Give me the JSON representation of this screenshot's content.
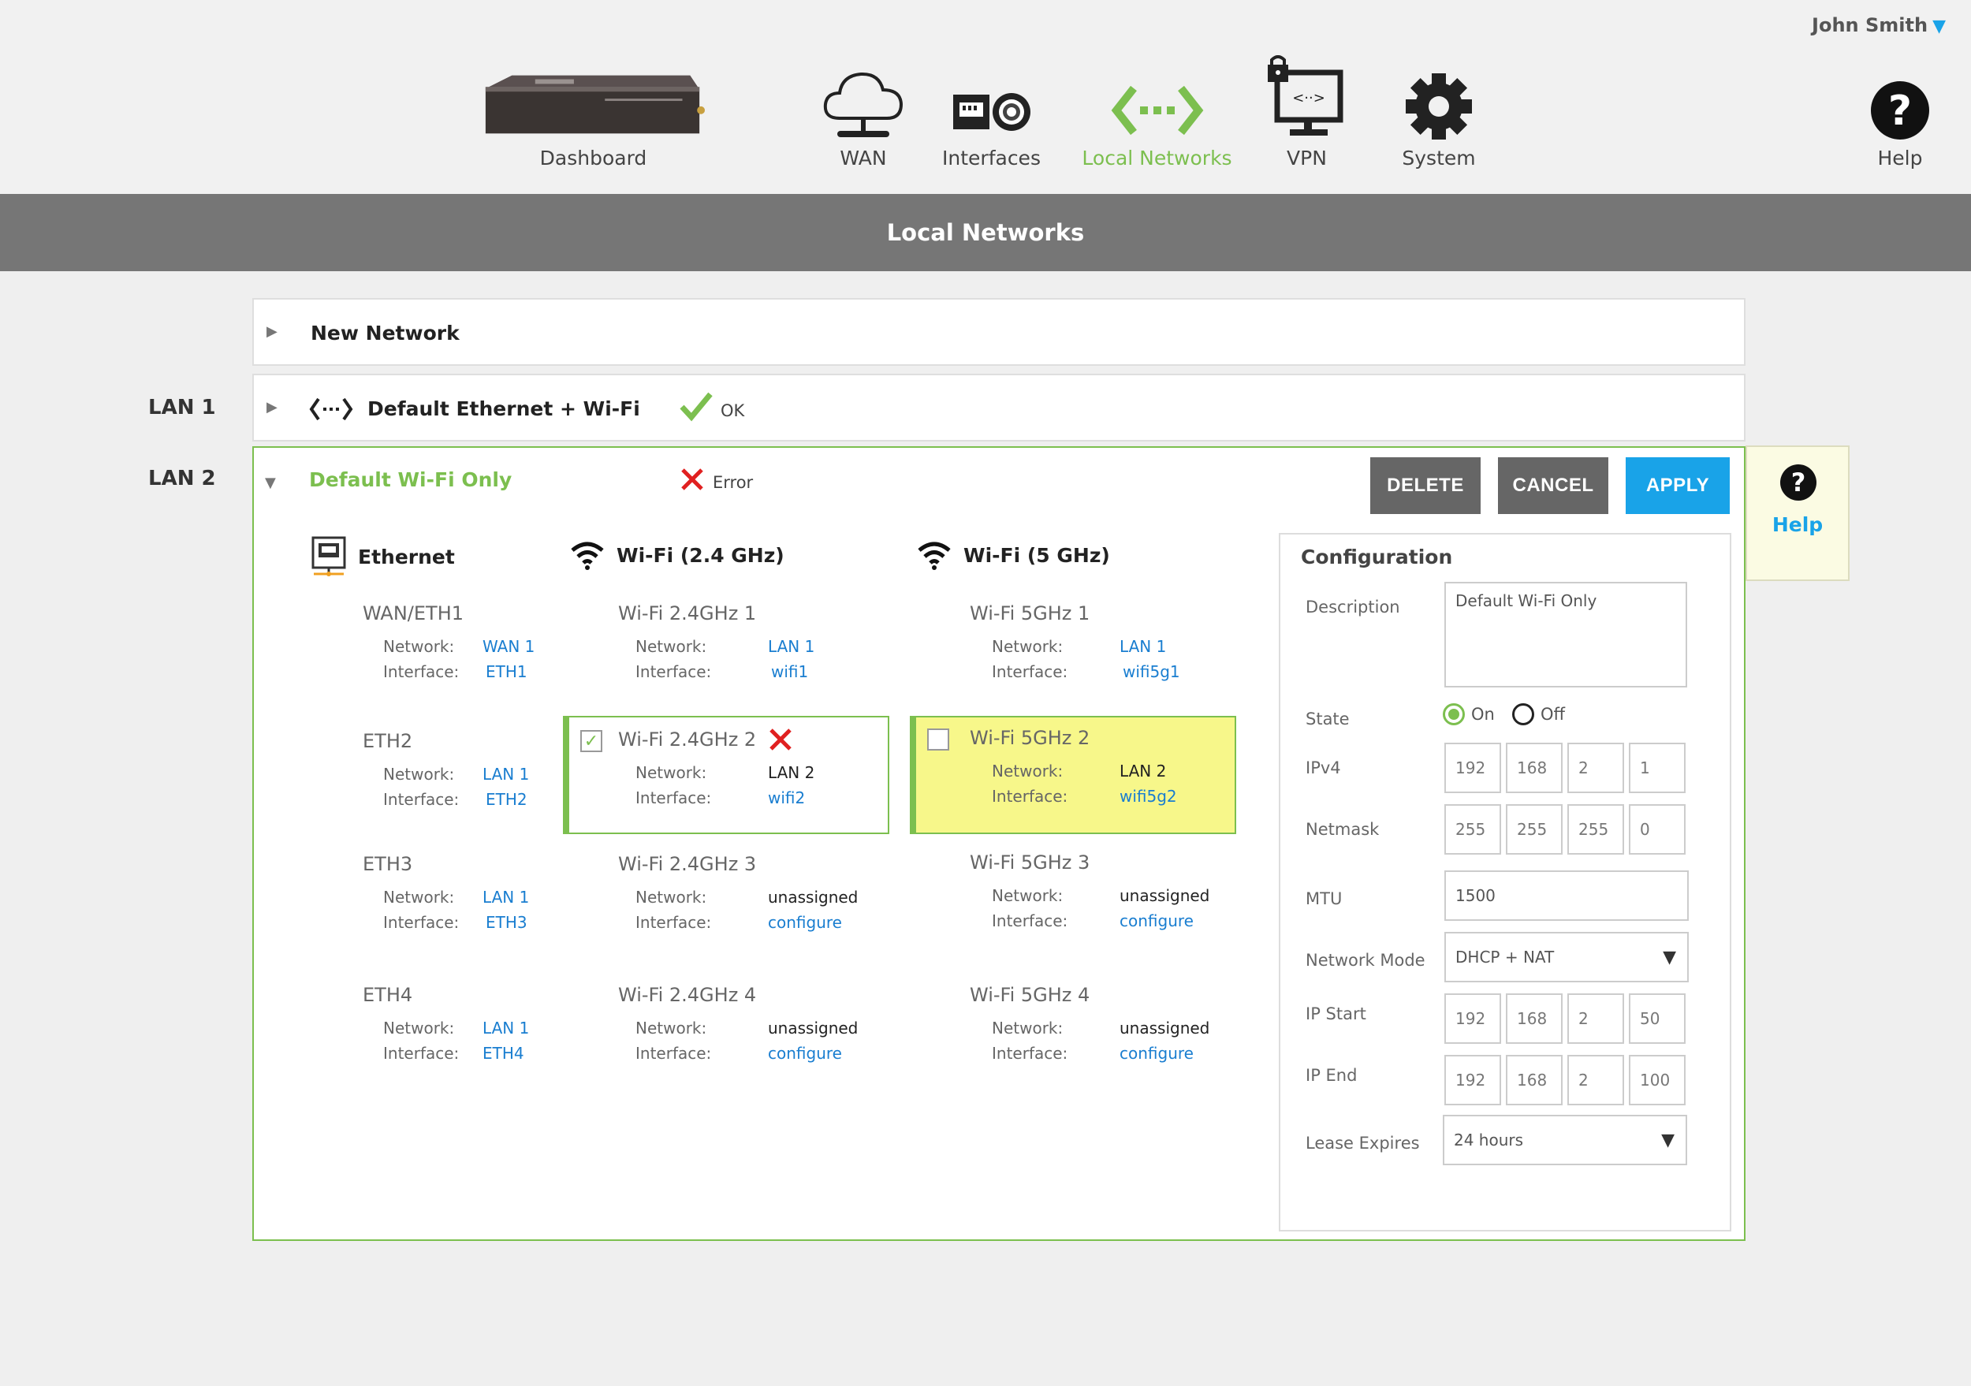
{
  "user": {
    "name": "John Smith"
  },
  "nav": [
    {
      "id": "dashboard",
      "label": "Dashboard",
      "icon": "router-device-icon"
    },
    {
      "id": "wan",
      "label": "WAN",
      "icon": "cloud-icon"
    },
    {
      "id": "interfaces",
      "label": "Interfaces",
      "icon": "ethernet-port-icon"
    },
    {
      "id": "local_networks",
      "label": "Local Networks",
      "icon": "network-arrows-icon",
      "active": true
    },
    {
      "id": "vpn",
      "label": "VPN",
      "icon": "locked-monitor-icon"
    },
    {
      "id": "system",
      "label": "System",
      "icon": "gear-icon"
    }
  ],
  "help": {
    "label": "Help"
  },
  "page_title": "Local Networks",
  "rows": {
    "new_network": {
      "title": "New Network"
    },
    "lan1": {
      "label": "LAN 1",
      "title": "Default Ethernet + Wi-Fi",
      "status": "OK"
    },
    "lan2": {
      "label": "LAN 2",
      "title": "Default Wi-Fi Only",
      "status": "Error"
    }
  },
  "buttons": {
    "delete": "DELETE",
    "cancel": "CANCEL",
    "apply": "APPLY"
  },
  "side_help": {
    "label": "Help"
  },
  "columns": {
    "ethernet": "Ethernet",
    "wifi24": "Wi-Fi (2.4 GHz)",
    "wifi5": "Wi-Fi (5 GHz)"
  },
  "field_labels": {
    "network": "Network:",
    "interface": "Interface:"
  },
  "ethernet": [
    {
      "name": "WAN/ETH1",
      "network": "WAN 1",
      "interface": "ETH1"
    },
    {
      "name": "ETH2",
      "network": "LAN 1",
      "interface": "ETH2"
    },
    {
      "name": "ETH3",
      "network": "LAN 1",
      "interface": "ETH3"
    },
    {
      "name": "ETH4",
      "network": "LAN 1",
      "interface": "ETH4"
    }
  ],
  "wifi24": [
    {
      "name": "Wi-Fi 2.4GHz 1",
      "network": "LAN 1",
      "interface": "wifi1"
    },
    {
      "name": "Wi-Fi 2.4GHz 2",
      "network": "LAN 2",
      "interface": "wifi2",
      "checked": true,
      "error": true
    },
    {
      "name": "Wi-Fi 2.4GHz  3",
      "network": "unassigned",
      "interface": "configure"
    },
    {
      "name": "Wi-Fi 2.4GHz  4",
      "network": "unassigned",
      "interface": "configure"
    }
  ],
  "wifi5": [
    {
      "name": "Wi-Fi 5GHz 1",
      "network": "LAN 1",
      "interface": "wifi5g1"
    },
    {
      "name": "Wi-Fi 5GHz 2",
      "network": "LAN 2",
      "interface": "wifi5g2",
      "highlight": true
    },
    {
      "name": "Wi-Fi 5GHz  3",
      "network": "unassigned",
      "interface": "configure"
    },
    {
      "name": "Wi-Fi 5GHz  4",
      "network": "unassigned",
      "interface": "configure"
    }
  ],
  "config": {
    "title": "Configuration",
    "description_label": "Description",
    "description_value": "Default Wi-Fi Only",
    "state_label": "State",
    "state_on": "On",
    "state_off": "Off",
    "ipv4_label": "IPv4",
    "ipv4": [
      "192",
      "168",
      "2",
      "1"
    ],
    "netmask_label": "Netmask",
    "netmask": [
      "255",
      "255",
      "255",
      "0"
    ],
    "mtu_label": "MTU",
    "mtu_value": "1500",
    "mode_label": "Network Mode",
    "mode_value": "DHCP + NAT",
    "ipstart_label": "IP Start",
    "ipstart": [
      "192",
      "168",
      "2",
      "50"
    ],
    "ipend_label": "IP End",
    "ipend": [
      "192",
      "168",
      "2",
      "100"
    ],
    "lease_label": "Lease Expires",
    "lease_value": "24 hours"
  },
  "colors": {
    "accent_green": "#7cbf4f",
    "accent_blue": "#19a3e8",
    "error_red": "#e02020",
    "highlight_yellow": "#f7f78a"
  }
}
